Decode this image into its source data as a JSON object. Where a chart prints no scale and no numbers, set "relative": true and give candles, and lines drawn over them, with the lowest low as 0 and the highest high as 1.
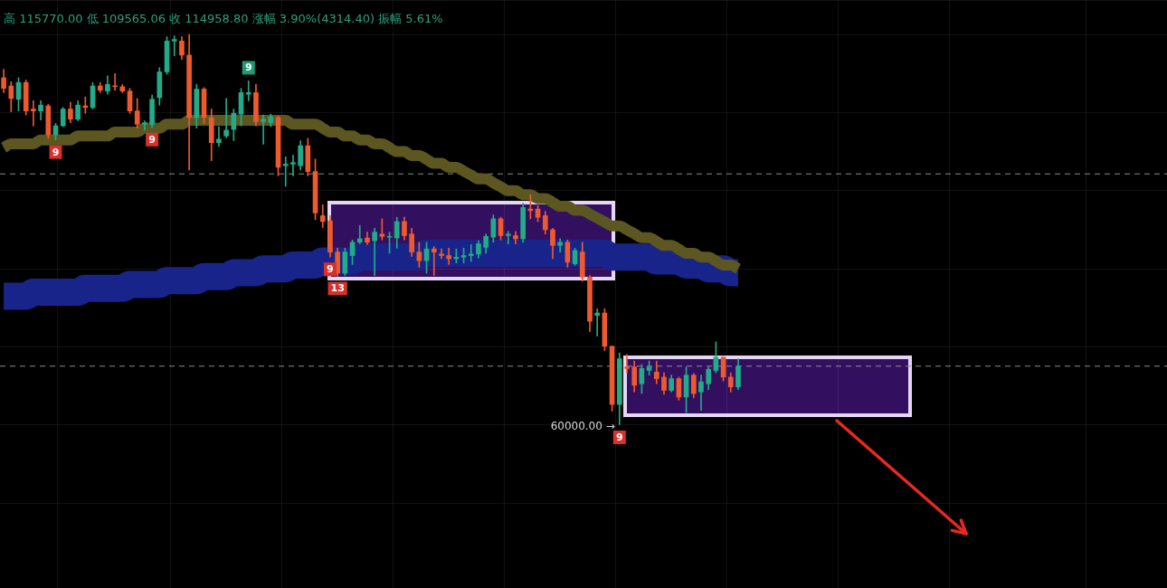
{
  "chart_data": {
    "type": "candlestick",
    "relative": true,
    "grid": true,
    "categories": [
      null,
      null,
      null,
      null,
      null,
      null,
      null,
      null,
      null,
      null,
      null,
      null,
      null,
      null,
      null,
      null,
      null,
      null,
      null,
      null,
      null,
      null,
      null,
      null,
      null,
      null,
      null,
      null,
      null,
      null,
      null,
      null,
      null,
      null,
      null,
      null,
      null,
      null,
      null,
      null,
      null,
      null,
      null,
      null,
      null,
      null,
      null,
      null,
      null,
      null,
      null,
      null,
      null,
      null,
      null,
      null,
      null,
      null,
      null,
      null,
      null,
      null,
      null,
      null,
      null,
      null,
      null,
      null,
      null,
      null,
      null,
      null,
      null,
      null,
      null,
      null,
      null,
      null,
      null,
      null,
      null,
      null,
      null,
      null,
      null,
      null,
      null,
      null,
      null,
      null,
      null,
      null,
      null,
      null,
      null,
      null,
      null,
      null,
      null,
      null
    ],
    "ohlc": [
      [
        0.889,
        0.911,
        0.851,
        0.862
      ],
      [
        0.868,
        0.879,
        0.802,
        0.836
      ],
      [
        0.834,
        0.889,
        0.804,
        0.877
      ],
      [
        0.877,
        0.883,
        0.794,
        0.804
      ],
      [
        0.809,
        0.83,
        0.766,
        0.804
      ],
      [
        0.804,
        0.83,
        0.781,
        0.819
      ],
      [
        0.817,
        0.821,
        0.734,
        0.743
      ],
      [
        0.743,
        0.772,
        0.73,
        0.766
      ],
      [
        0.766,
        0.813,
        0.764,
        0.809
      ],
      [
        0.809,
        0.826,
        0.774,
        0.783
      ],
      [
        0.783,
        0.83,
        0.779,
        0.819
      ],
      [
        0.817,
        0.84,
        0.798,
        0.813
      ],
      [
        0.813,
        0.877,
        0.809,
        0.868
      ],
      [
        0.868,
        0.877,
        0.851,
        0.857
      ],
      [
        0.855,
        0.894,
        0.847,
        0.872
      ],
      [
        0.868,
        0.9,
        0.857,
        0.866
      ],
      [
        0.866,
        0.872,
        0.851,
        0.855
      ],
      [
        0.855,
        0.862,
        0.798,
        0.804
      ],
      [
        0.804,
        0.836,
        0.76,
        0.77
      ],
      [
        0.77,
        0.779,
        0.755,
        0.774
      ],
      [
        0.77,
        0.845,
        0.762,
        0.834
      ],
      [
        0.838,
        0.915,
        0.819,
        0.904
      ],
      [
        0.904,
        0.994,
        0.898,
        0.983
      ],
      [
        0.983,
        0.996,
        0.945,
        0.987
      ],
      [
        0.983,
        0.994,
        0.936,
        0.947
      ],
      [
        0.947,
        1,
        0.653,
        0.787
      ],
      [
        0.787,
        0.872,
        0.76,
        0.86
      ],
      [
        0.86,
        0.864,
        0.772,
        0.787
      ],
      [
        0.787,
        0.809,
        0.677,
        0.723
      ],
      [
        0.723,
        0.764,
        0.713,
        0.732
      ],
      [
        0.74,
        0.836,
        0.736,
        0.755
      ],
      [
        0.757,
        0.809,
        0.728,
        0.798
      ],
      [
        0.796,
        0.862,
        0.766,
        0.851
      ],
      [
        0.847,
        0.881,
        0.83,
        0.851
      ],
      [
        0.851,
        0.872,
        0.766,
        0.777
      ],
      [
        0.777,
        0.794,
        0.719,
        0.783
      ],
      [
        0.774,
        0.796,
        0.764,
        0.789
      ],
      [
        0.787,
        0.791,
        0.638,
        0.66
      ],
      [
        0.664,
        0.687,
        0.611,
        0.668
      ],
      [
        0.668,
        0.691,
        0.638,
        0.672
      ],
      [
        0.664,
        0.728,
        0.653,
        0.715
      ],
      [
        0.715,
        0.734,
        0.638,
        0.649
      ],
      [
        0.649,
        0.681,
        0.526,
        0.543
      ],
      [
        0.536,
        0.564,
        0.506,
        0.521
      ],
      [
        0.523,
        0.536,
        0.43,
        0.443
      ],
      [
        0.443,
        0.453,
        0.381,
        0.389
      ],
      [
        0.389,
        0.453,
        0.383,
        0.443
      ],
      [
        0.434,
        0.474,
        0.411,
        0.468
      ],
      [
        0.468,
        0.511,
        0.464,
        0.477
      ],
      [
        0.479,
        0.494,
        0.462,
        0.468
      ],
      [
        0.472,
        0.504,
        0.383,
        0.494
      ],
      [
        0.489,
        0.528,
        0.474,
        0.483
      ],
      [
        0.481,
        0.494,
        0.44,
        0.483
      ],
      [
        0.479,
        0.532,
        0.453,
        0.521
      ],
      [
        0.521,
        0.532,
        0.474,
        0.485
      ],
      [
        0.489,
        0.504,
        0.432,
        0.443
      ],
      [
        0.443,
        0.468,
        0.404,
        0.421
      ],
      [
        0.421,
        0.468,
        0.389,
        0.451
      ],
      [
        0.451,
        0.457,
        0.383,
        0.443
      ],
      [
        0.438,
        0.451,
        0.426,
        0.434
      ],
      [
        0.434,
        0.453,
        0.411,
        0.426
      ],
      [
        0.426,
        0.451,
        0.415,
        0.43
      ],
      [
        0.43,
        0.453,
        0.415,
        0.434
      ],
      [
        0.434,
        0.462,
        0.419,
        0.438
      ],
      [
        0.438,
        0.472,
        0.428,
        0.464
      ],
      [
        0.455,
        0.489,
        0.44,
        0.483
      ],
      [
        0.481,
        0.538,
        0.468,
        0.528
      ],
      [
        0.528,
        0.532,
        0.474,
        0.485
      ],
      [
        0.485,
        0.496,
        0.464,
        0.489
      ],
      [
        0.485,
        0.496,
        0.464,
        0.477
      ],
      [
        0.477,
        0.568,
        0.468,
        0.557
      ],
      [
        0.553,
        0.589,
        0.528,
        0.549
      ],
      [
        0.553,
        0.562,
        0.521,
        0.532
      ],
      [
        0.536,
        0.547,
        0.489,
        0.5
      ],
      [
        0.5,
        0.504,
        0.426,
        0.46
      ],
      [
        0.46,
        0.477,
        0.443,
        0.468
      ],
      [
        0.468,
        0.474,
        0.404,
        0.417
      ],
      [
        0.413,
        0.453,
        0.409,
        0.447
      ],
      [
        0.443,
        0.468,
        0.368,
        0.379
      ],
      [
        0.379,
        0.383,
        0.24,
        0.266
      ],
      [
        0.281,
        0.298,
        0.228,
        0.287
      ],
      [
        0.287,
        0.298,
        0.191,
        0.202
      ],
      [
        0.202,
        0.202,
        0.036,
        0.053
      ],
      [
        0.053,
        0.185,
        0,
        0.17
      ],
      [
        0.149,
        0.181,
        0.134,
        0.145
      ],
      [
        0.149,
        0.164,
        0.085,
        0.102
      ],
      [
        0.106,
        0.155,
        0.081,
        0.145
      ],
      [
        0.14,
        0.164,
        0.128,
        0.149
      ],
      [
        0.136,
        0.164,
        0.106,
        0.119
      ],
      [
        0.123,
        0.134,
        0.079,
        0.089
      ],
      [
        0.089,
        0.128,
        0.085,
        0.119
      ],
      [
        0.119,
        0.123,
        0.064,
        0.072
      ],
      [
        0.072,
        0.149,
        0.032,
        0.128
      ],
      [
        0.128,
        0.132,
        0.07,
        0.081
      ],
      [
        0.085,
        0.128,
        0.038,
        0.111
      ],
      [
        0.106,
        0.149,
        0.091,
        0.143
      ],
      [
        0.14,
        0.213,
        0.134,
        0.174
      ],
      [
        0.174,
        0.174,
        0.113,
        0.123
      ],
      [
        0.123,
        0.134,
        0.085,
        0.098
      ],
      [
        0.098,
        0.17,
        0.091,
        0.151
      ]
    ],
    "colors": [
      "#ee5a2f",
      "#ee5a2f",
      "#22ab88",
      "#ee5a2f",
      "#ee5a2f",
      "#22ab88",
      "#ee5a2f",
      "#22ab88",
      "#22ab88",
      "#ee5a2f",
      "#22ab88",
      "#ee5a2f",
      "#22ab88",
      "#ee5a2f",
      "#22ab88",
      "#ee5a2f",
      "#ee5a2f",
      "#ee5a2f",
      "#ee5a2f",
      "#22ab88",
      "#22ab88",
      "#22ab88",
      "#22ab88",
      "#22ab88",
      "#ee5a2f",
      "#ee5a2f",
      "#22ab88",
      "#ee5a2f",
      "#ee5a2f",
      "#22ab88",
      "#22ab88",
      "#22ab88",
      "#22ab88",
      "#22ab88",
      "#ee5a2f",
      "#22ab88",
      "#22ab88",
      "#ee5a2f",
      "#22ab88",
      "#22ab88",
      "#22ab88",
      "#ee5a2f",
      "#ee5a2f",
      "#ee5a2f",
      "#ee5a2f",
      "#ee5a2f",
      "#22ab88",
      "#22ab88",
      "#22ab88",
      "#ee5a2f",
      "#22ab88",
      "#ee5a2f",
      "#22ab88",
      "#22ab88",
      "#ee5a2f",
      "#ee5a2f",
      "#ee5a2f",
      "#22ab88",
      "#ee5a2f",
      "#ee5a2f",
      "#ee5a2f",
      "#22ab88",
      "#22ab88",
      "#22ab88",
      "#22ab88",
      "#22ab88",
      "#22ab88",
      "#ee5a2f",
      "#22ab88",
      "#ee5a2f",
      "#22ab88",
      "#ee5a2f",
      "#ee5a2f",
      "#ee5a2f",
      "#ee5a2f",
      "#22ab88",
      "#ee5a2f",
      "#22ab88",
      "#ee5a2f",
      "#ee5a2f",
      "#22ab88",
      "#ee5a2f",
      "#ee5a2f",
      "#22ab88",
      "#ee5a2f",
      "#ee5a2f",
      "#22ab88",
      "#22ab88",
      "#ee5a2f",
      "#ee5a2f",
      "#22ab88",
      "#ee5a2f",
      "#22ab88",
      "#ee5a2f",
      "#22ab88",
      "#22ab88",
      "#22ab88",
      "#ee5a2f",
      "#ee5a2f",
      "#22ab88"
    ],
    "series": [
      {
        "type": "line",
        "color": "#5c5720",
        "values": [
          0.71,
          0.72,
          0.72,
          0.72,
          0.72,
          0.73,
          0.73,
          0.73,
          0.73,
          0.73,
          0.74,
          0.74,
          0.74,
          0.74,
          0.74,
          0.75,
          0.75,
          0.75,
          0.75,
          0.76,
          0.76,
          0.76,
          0.77,
          0.77,
          0.77,
          0.78,
          0.78,
          0.78,
          0.78,
          0.78,
          0.78,
          0.78,
          0.78,
          0.78,
          0.78,
          0.78,
          0.78,
          0.78,
          0.78,
          0.77,
          0.77,
          0.77,
          0.77,
          0.76,
          0.75,
          0.75,
          0.74,
          0.74,
          0.73,
          0.73,
          0.72,
          0.72,
          0.71,
          0.7,
          0.7,
          0.69,
          0.69,
          0.68,
          0.67,
          0.67,
          0.66,
          0.66,
          0.65,
          0.64,
          0.63,
          0.63,
          0.62,
          0.61,
          0.6,
          0.6,
          0.59,
          0.59,
          0.58,
          0.58,
          0.57,
          0.56,
          0.56,
          0.55,
          0.55,
          0.54,
          0.53,
          0.52,
          0.51,
          0.51,
          0.5,
          0.49,
          0.48,
          0.48,
          0.47,
          0.46,
          0.46,
          0.45,
          0.44,
          0.44,
          0.43,
          0.43,
          0.42,
          0.41,
          0.41,
          0.4
        ]
      },
      {
        "type": "line",
        "color": "#19248a",
        "values": [
          0.33,
          0.33,
          0.33,
          0.33,
          0.34,
          0.34,
          0.34,
          0.34,
          0.34,
          0.34,
          0.34,
          0.35,
          0.35,
          0.35,
          0.35,
          0.35,
          0.35,
          0.36,
          0.36,
          0.36,
          0.36,
          0.36,
          0.37,
          0.37,
          0.37,
          0.37,
          0.37,
          0.38,
          0.38,
          0.38,
          0.38,
          0.39,
          0.39,
          0.39,
          0.39,
          0.4,
          0.4,
          0.4,
          0.4,
          0.41,
          0.41,
          0.41,
          0.41,
          0.42,
          0.42,
          0.42,
          0.42,
          0.42,
          0.43,
          0.43,
          0.43,
          0.43,
          0.43,
          0.43,
          0.43,
          0.43,
          0.43,
          0.44,
          0.44,
          0.44,
          0.44,
          0.44,
          0.44,
          0.44,
          0.44,
          0.44,
          0.44,
          0.44,
          0.44,
          0.44,
          0.44,
          0.44,
          0.44,
          0.44,
          0.44,
          0.44,
          0.44,
          0.44,
          0.44,
          0.44,
          0.44,
          0.44,
          0.43,
          0.43,
          0.43,
          0.43,
          0.43,
          0.43,
          0.42,
          0.42,
          0.42,
          0.42,
          0.41,
          0.41,
          0.41,
          0.4,
          0.4,
          0.4,
          0.39,
          0.39
        ]
      }
    ],
    "ref_lines": [
      {
        "axis": "y",
        "value": 0.643,
        "line_style": "dashed",
        "color": "#8c8c8c"
      },
      {
        "axis": "y",
        "value": 0.151,
        "line_style": "dashed",
        "color": "#8c8c8c"
      }
    ],
    "annotations": [
      "高 115770.00 低 109565.06 收 114958.80 涨幅 3.90%(4314.40) 振幅 5.61%",
      "60000.00 →",
      {
        "text": "9",
        "y": 0.73
      },
      {
        "text": "9",
        "y": 0.762
      },
      {
        "text": "9",
        "y": 0.881
      },
      {
        "text": "9",
        "y": 0.43
      },
      {
        "text": "13",
        "y": 0.381
      },
      {
        "text": "9",
        "y": 0
      }
    ]
  }
}
